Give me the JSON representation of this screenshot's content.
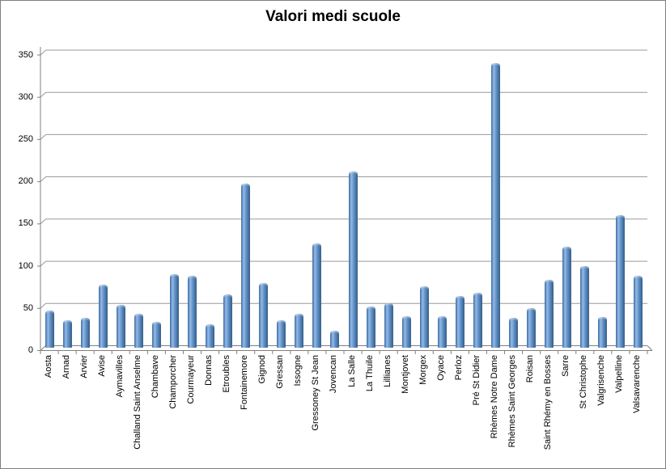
{
  "window": {
    "background": "#ffffff",
    "border_color": "#7f7f7f"
  },
  "chart_data": {
    "type": "bar",
    "title": "Valori medi scuole",
    "categories": [
      "Aosta",
      "Arnad",
      "Arvier",
      "Avise",
      "Aymavilles",
      "Challand Saint Anselme",
      "Chambave",
      "Champorcher",
      "Courmayeur",
      "Donnas",
      "Etroubles",
      "Fontainemore",
      "Gignod",
      "Gressan",
      "Issogne",
      "Gressoney St Jean",
      "Jovencan",
      "La Salle",
      "La Thuile",
      "Lillianes",
      "Montjovet",
      "Morgex",
      "Oyace",
      "Perloz",
      "Pré St Didier",
      "Rhèmes Notre Dame",
      "Rhèmes Saint Georges",
      "Roisan",
      "Saint Rhémy en Bosses",
      "Sarre",
      "St Christophe",
      "Valgrisenche",
      "Valpelline",
      "Valsavarenche"
    ],
    "values": [
      44,
      33,
      35,
      75,
      51,
      40,
      31,
      87,
      85,
      28,
      63,
      194,
      77,
      33,
      40,
      124,
      20,
      209,
      49,
      53,
      37,
      73,
      37,
      61,
      65,
      337,
      35,
      47,
      80,
      120,
      97,
      36,
      157,
      85
    ],
    "xlabel": "",
    "ylabel": "",
    "ylim": [
      0,
      350
    ],
    "ytick_step": 50,
    "yticks": [
      0,
      50,
      100,
      150,
      200,
      250,
      300,
      350
    ],
    "grid": true,
    "legend": false,
    "bar_color": "#4f81bd",
    "bar_color_dark": "#2e5277",
    "bar_color_light": "#92bae8",
    "gridline_color": "#9a9a9a",
    "axis_color": "#808080",
    "text_color": "#000000"
  }
}
